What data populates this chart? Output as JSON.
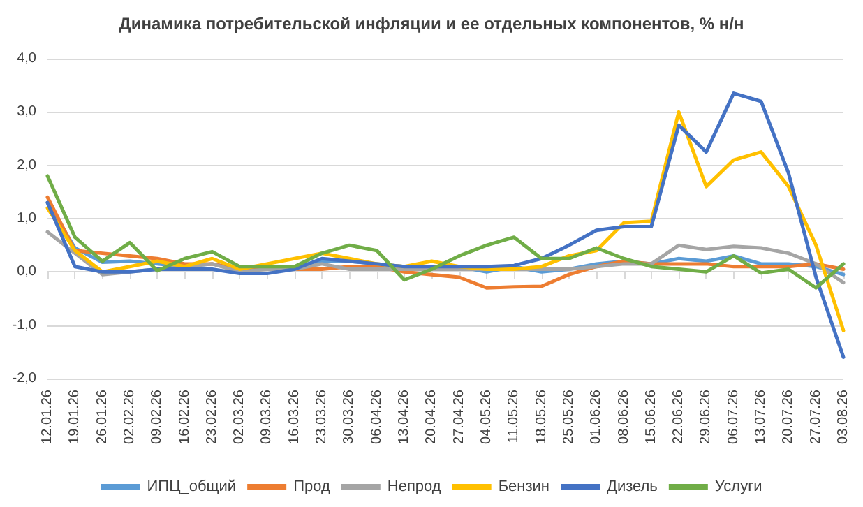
{
  "chart_data": {
    "type": "line",
    "title": "Динамика потребительской инфляции и ее отдельных компонентов, % н/н",
    "categories": [
      "12.01.26",
      "19.01.26",
      "26.01.26",
      "02.02.26",
      "09.02.26",
      "16.02.26",
      "23.02.26",
      "02.03.26",
      "09.03.26",
      "16.03.26",
      "23.03.26",
      "30.03.26",
      "06.04.26",
      "13.04.26",
      "20.04.26",
      "27.04.26",
      "04.05.26",
      "11.05.26",
      "18.05.26",
      "25.05.26",
      "01.06.26",
      "08.06.26",
      "15.06.26",
      "22.06.26",
      "29.06.26",
      "06.07.26",
      "13.07.26",
      "20.07.26",
      "27.07.26",
      "03.08.26"
    ],
    "series": [
      {
        "name": "ИПЦ_общий",
        "color": "#5b9bd5",
        "values": [
          1.3,
          0.45,
          0.18,
          0.2,
          0.15,
          0.1,
          0.15,
          0.05,
          0.05,
          0.1,
          0.2,
          0.2,
          0.15,
          0.1,
          0.1,
          0.1,
          0.0,
          0.1,
          0.0,
          0.05,
          0.15,
          0.2,
          0.15,
          0.25,
          0.2,
          0.3,
          0.15,
          0.15,
          0.1,
          -0.05
        ]
      },
      {
        "name": "Прод",
        "color": "#ed7d31",
        "values": [
          1.4,
          0.4,
          0.35,
          0.3,
          0.25,
          0.15,
          0.15,
          0.05,
          0.05,
          0.05,
          0.05,
          0.1,
          0.1,
          0.0,
          -0.05,
          -0.1,
          -0.3,
          -0.28,
          -0.27,
          -0.05,
          0.1,
          0.2,
          0.15,
          0.15,
          0.15,
          0.1,
          0.1,
          0.1,
          0.15,
          0.05
        ]
      },
      {
        "name": "Непрод",
        "color": "#a5a5a5",
        "values": [
          0.75,
          0.35,
          -0.05,
          0.0,
          0.05,
          0.1,
          0.15,
          0.0,
          0.05,
          0.05,
          0.15,
          0.05,
          0.05,
          0.05,
          0.05,
          0.05,
          0.05,
          0.05,
          0.05,
          0.05,
          0.1,
          0.15,
          0.15,
          0.5,
          0.42,
          0.48,
          0.45,
          0.35,
          0.15,
          -0.2
        ]
      },
      {
        "name": "Бензин",
        "color": "#ffc000",
        "values": [
          1.2,
          0.4,
          0.0,
          0.1,
          0.2,
          0.1,
          0.25,
          0.05,
          0.15,
          0.25,
          0.35,
          0.25,
          0.15,
          0.1,
          0.2,
          0.1,
          0.05,
          0.05,
          0.1,
          0.3,
          0.4,
          0.92,
          0.95,
          3.0,
          1.6,
          2.1,
          2.25,
          1.6,
          0.5,
          -1.1
        ]
      },
      {
        "name": "Дизель",
        "color": "#4472c4",
        "values": [
          1.3,
          0.1,
          0.0,
          0.0,
          0.05,
          0.05,
          0.05,
          -0.03,
          -0.03,
          0.05,
          0.25,
          0.2,
          0.15,
          0.1,
          0.1,
          0.1,
          0.1,
          0.12,
          0.25,
          0.5,
          0.78,
          0.85,
          0.85,
          2.75,
          2.25,
          3.35,
          3.2,
          1.85,
          -0.1,
          -1.6
        ]
      },
      {
        "name": "Услуги",
        "color": "#70ad47",
        "values": [
          1.8,
          0.65,
          0.2,
          0.55,
          0.02,
          0.25,
          0.38,
          0.1,
          0.1,
          0.1,
          0.35,
          0.5,
          0.4,
          -0.15,
          0.05,
          0.3,
          0.5,
          0.65,
          0.25,
          0.25,
          0.45,
          0.25,
          0.1,
          0.05,
          0.0,
          0.3,
          -0.02,
          0.05,
          -0.3,
          0.15
        ]
      }
    ],
    "ylim": [
      -2,
      4
    ],
    "yticks": [
      {
        "value": -2,
        "label": "-2,0"
      },
      {
        "value": -1,
        "label": "-1,0"
      },
      {
        "value": 0,
        "label": "0,0"
      },
      {
        "value": 1,
        "label": "1,0"
      },
      {
        "value": 2,
        "label": "2,0"
      },
      {
        "value": 3,
        "label": "3,0"
      },
      {
        "value": 4,
        "label": "4,0"
      }
    ],
    "grid": "y",
    "legend": "bottom",
    "marker": "none",
    "line_style": "solid"
  }
}
